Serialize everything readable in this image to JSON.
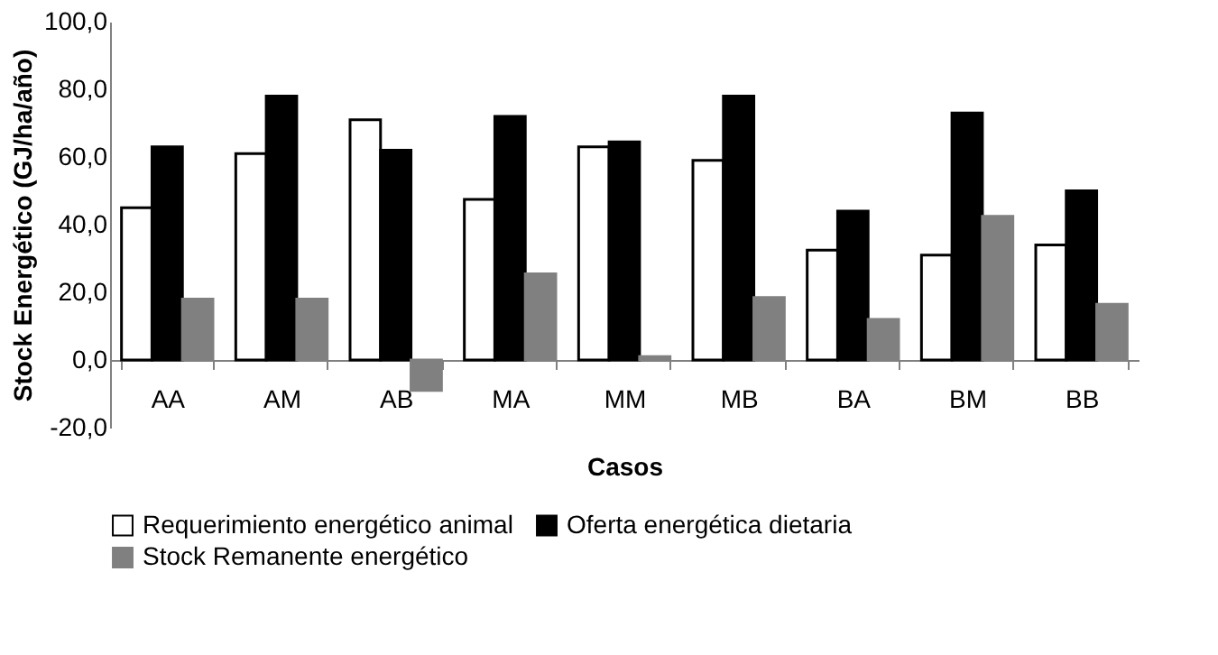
{
  "chart_data": {
    "type": "bar",
    "xlabel": "Casos",
    "ylabel": "Stock Energético  (GJ/ha/año)",
    "categories": [
      "AA",
      "AM",
      "AB",
      "MA",
      "MM",
      "MB",
      "BA",
      "BM",
      "BB"
    ],
    "series": [
      {
        "name": "Requerimiento energético animal",
        "color": "#ffffff",
        "values": [
          45,
          61,
          71,
          47.5,
          63,
          59,
          32.5,
          31,
          34
        ]
      },
      {
        "name": "Oferta energética dietaria",
        "color": "#000000",
        "values": [
          63,
          78,
          62,
          72,
          64.5,
          78,
          44,
          73,
          50
        ]
      },
      {
        "name": "Stock Remanente energético",
        "color": "#808080",
        "values": [
          18,
          18,
          -9,
          25.5,
          1,
          18.5,
          12,
          42.5,
          16.5
        ]
      }
    ],
    "ylim": [
      -20,
      100
    ],
    "yticks": [
      {
        "value": -20,
        "label": "-20,0"
      },
      {
        "value": 0,
        "label": "0,0"
      },
      {
        "value": 20,
        "label": "20,0"
      },
      {
        "value": 40,
        "label": "40,0"
      },
      {
        "value": 60,
        "label": "60,0"
      },
      {
        "value": 80,
        "label": "80,0"
      },
      {
        "value": 100,
        "label": "100,0"
      }
    ],
    "grid": false,
    "legend": "bottom"
  }
}
